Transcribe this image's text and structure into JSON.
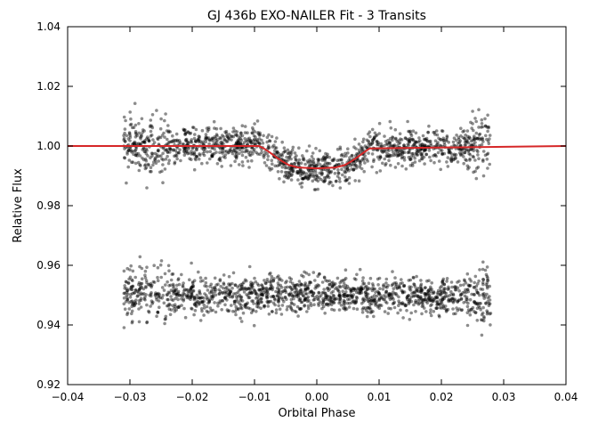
{
  "chart_data": {
    "type": "scatter",
    "title": "GJ 436b EXO-NAILER Fit - 3 Transits",
    "xlabel": "Orbital Phase",
    "ylabel": "Relative Flux",
    "xlim": [
      -0.04,
      0.04
    ],
    "ylim": [
      0.92,
      1.04
    ],
    "x_ticks": [
      -0.04,
      -0.03,
      -0.02,
      -0.01,
      0.0,
      0.01,
      0.02,
      0.03,
      0.04
    ],
    "x_tick_labels": [
      "−0.04",
      "−0.03",
      "−0.02",
      "−0.01",
      "0.00",
      "0.01",
      "0.02",
      "0.03",
      "0.04"
    ],
    "y_ticks": [
      0.92,
      0.94,
      0.96,
      0.98,
      1.0,
      1.02,
      1.04
    ],
    "y_tick_labels": [
      "0.92",
      "0.94",
      "0.96",
      "0.98",
      "1.00",
      "1.02",
      "1.04"
    ],
    "grid": false,
    "legend": "none",
    "colors": {
      "model": "#d62728",
      "points": "#000000"
    },
    "series": [
      {
        "type": "line",
        "x": [
          -0.04,
          -0.0093,
          -0.0085,
          -0.0075,
          -0.0065,
          -0.0055,
          -0.0045,
          -0.003,
          0.0,
          0.003,
          0.0045,
          0.0055,
          0.0065,
          0.0075,
          0.0085,
          0.04
        ],
        "values": [
          1.0,
          1.0,
          0.9992,
          0.9978,
          0.9962,
          0.9948,
          0.9936,
          0.9928,
          0.9925,
          0.9928,
          0.9936,
          0.9948,
          0.9962,
          0.9978,
          0.9992,
          1.0
        ]
      },
      {
        "type": "scatter",
        "x_range": [
          -0.031,
          0.028
        ],
        "baseline": 1.0,
        "scatter_sigma": 0.004,
        "transit_window": [
          -0.009,
          0.009
        ],
        "transit_depth": 0.0075
      },
      {
        "type": "scatter",
        "x_range": [
          -0.031,
          0.028
        ],
        "baseline": 0.95,
        "scatter_sigma": 0.004
      }
    ]
  }
}
